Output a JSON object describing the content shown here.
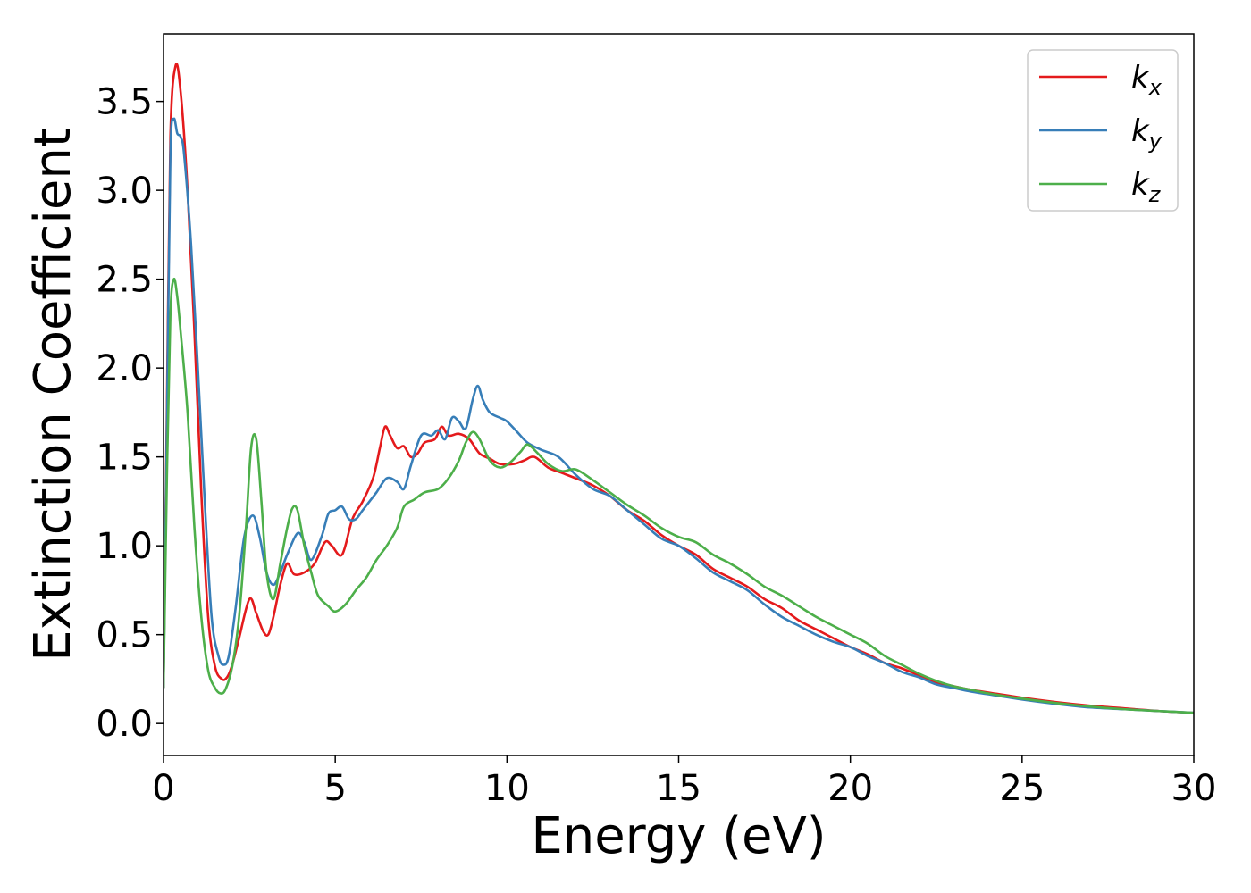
{
  "chart_data": {
    "type": "line",
    "xlabel": "Energy (eV)",
    "ylabel": "Extinction Coefficient",
    "xlim": [
      0,
      30
    ],
    "ylim": [
      -0.18,
      3.88
    ],
    "xticks": [
      0,
      5,
      10,
      15,
      20,
      25,
      30
    ],
    "yticks": [
      0.0,
      0.5,
      1.0,
      1.5,
      2.0,
      2.5,
      3.0,
      3.5
    ],
    "xtick_labels": [
      "0",
      "5",
      "10",
      "15",
      "20",
      "25",
      "30"
    ],
    "ytick_labels": [
      "0.0",
      "0.5",
      "1.0",
      "1.5",
      "2.0",
      "2.5",
      "3.0",
      "3.5"
    ],
    "grid": false,
    "legend_position": "top-right",
    "series": [
      {
        "name": "k_x",
        "label_main": "k",
        "label_sub": "x",
        "color": "#e41a1c",
        "x": [
          0,
          0.1,
          0.2,
          0.35,
          0.5,
          0.7,
          0.9,
          1.1,
          1.3,
          1.5,
          1.7,
          1.85,
          2.0,
          2.2,
          2.5,
          2.7,
          2.9,
          3.05,
          3.2,
          3.4,
          3.6,
          3.8,
          4.1,
          4.4,
          4.7,
          4.9,
          5.2,
          5.5,
          5.8,
          6.1,
          6.3,
          6.45,
          6.6,
          6.8,
          7.0,
          7.2,
          7.4,
          7.6,
          7.9,
          8.1,
          8.3,
          8.6,
          8.9,
          9.2,
          9.5,
          9.8,
          10.2,
          10.5,
          10.8,
          11.2,
          11.6,
          12.0,
          12.5,
          13.0,
          13.5,
          14.0,
          14.5,
          15.0,
          15.5,
          16.0,
          16.5,
          17.0,
          17.5,
          18.0,
          18.5,
          19.0,
          19.5,
          20.0,
          20.5,
          21.0,
          21.5,
          22.0,
          22.5,
          23.0,
          23.5,
          24.0,
          25.0,
          26.0,
          27.0,
          28.0,
          29.0,
          30.0
        ],
        "y": [
          0.2,
          1.8,
          3.3,
          3.7,
          3.55,
          3.0,
          2.2,
          1.3,
          0.6,
          0.32,
          0.25,
          0.26,
          0.33,
          0.48,
          0.7,
          0.62,
          0.52,
          0.5,
          0.6,
          0.78,
          0.9,
          0.84,
          0.85,
          0.9,
          1.02,
          1.0,
          0.95,
          1.15,
          1.25,
          1.38,
          1.55,
          1.67,
          1.62,
          1.55,
          1.56,
          1.5,
          1.52,
          1.58,
          1.6,
          1.67,
          1.62,
          1.63,
          1.6,
          1.52,
          1.49,
          1.46,
          1.46,
          1.48,
          1.5,
          1.44,
          1.41,
          1.38,
          1.34,
          1.28,
          1.2,
          1.14,
          1.06,
          1.0,
          0.95,
          0.87,
          0.82,
          0.77,
          0.7,
          0.65,
          0.58,
          0.53,
          0.48,
          0.43,
          0.39,
          0.34,
          0.31,
          0.27,
          0.23,
          0.21,
          0.19,
          0.175,
          0.145,
          0.12,
          0.1,
          0.085,
          0.07,
          0.06
        ]
      },
      {
        "name": "k_y",
        "label_main": "k",
        "label_sub": "y",
        "color": "#377eb8",
        "x": [
          0,
          0.1,
          0.2,
          0.3,
          0.4,
          0.5,
          0.6,
          0.8,
          1.0,
          1.2,
          1.4,
          1.6,
          1.75,
          1.9,
          2.1,
          2.35,
          2.6,
          2.8,
          3.0,
          3.2,
          3.4,
          3.6,
          3.9,
          4.1,
          4.3,
          4.6,
          4.8,
          5.0,
          5.2,
          5.4,
          5.6,
          5.8,
          6.0,
          6.2,
          6.5,
          6.8,
          7.0,
          7.2,
          7.5,
          7.8,
          8.0,
          8.2,
          8.4,
          8.6,
          8.8,
          9.0,
          9.15,
          9.3,
          9.5,
          9.8,
          10.0,
          10.3,
          10.6,
          11.0,
          11.5,
          12.0,
          12.5,
          13.0,
          13.5,
          14.0,
          14.5,
          15.0,
          15.5,
          16.0,
          16.5,
          17.0,
          17.5,
          18.0,
          18.5,
          19.0,
          19.5,
          20.0,
          20.5,
          21.0,
          21.5,
          22.0,
          22.5,
          23.0,
          23.5,
          24.0,
          25.0,
          26.0,
          27.0,
          28.0,
          29.0,
          30.0
        ],
        "y": [
          0.2,
          1.7,
          3.2,
          3.4,
          3.32,
          3.3,
          3.2,
          2.7,
          2.0,
          1.25,
          0.6,
          0.38,
          0.33,
          0.38,
          0.65,
          1.05,
          1.17,
          1.05,
          0.85,
          0.78,
          0.85,
          0.95,
          1.07,
          1.02,
          0.92,
          1.05,
          1.18,
          1.2,
          1.22,
          1.15,
          1.15,
          1.2,
          1.25,
          1.3,
          1.38,
          1.36,
          1.32,
          1.45,
          1.62,
          1.62,
          1.65,
          1.6,
          1.72,
          1.7,
          1.66,
          1.82,
          1.9,
          1.82,
          1.75,
          1.72,
          1.7,
          1.64,
          1.58,
          1.54,
          1.5,
          1.4,
          1.32,
          1.28,
          1.2,
          1.12,
          1.04,
          1.0,
          0.93,
          0.85,
          0.8,
          0.75,
          0.67,
          0.6,
          0.55,
          0.5,
          0.46,
          0.43,
          0.38,
          0.34,
          0.29,
          0.26,
          0.22,
          0.2,
          0.18,
          0.165,
          0.135,
          0.11,
          0.09,
          0.08,
          0.07,
          0.06
        ]
      },
      {
        "name": "k_z",
        "label_main": "k",
        "label_sub": "z",
        "color": "#4daf4a",
        "x": [
          0,
          0.1,
          0.2,
          0.3,
          0.4,
          0.5,
          0.7,
          0.9,
          1.1,
          1.3,
          1.5,
          1.65,
          1.8,
          2.0,
          2.2,
          2.4,
          2.55,
          2.7,
          2.85,
          3.0,
          3.2,
          3.4,
          3.6,
          3.75,
          3.9,
          4.1,
          4.3,
          4.5,
          4.8,
          5.0,
          5.3,
          5.6,
          5.9,
          6.2,
          6.5,
          6.8,
          7.0,
          7.3,
          7.6,
          8.0,
          8.3,
          8.6,
          8.8,
          9.0,
          9.2,
          9.5,
          9.8,
          10.1,
          10.4,
          10.6,
          10.9,
          11.2,
          11.6,
          12.0,
          12.5,
          13.0,
          13.5,
          14.0,
          14.5,
          15.0,
          15.5,
          16.0,
          16.5,
          17.0,
          17.5,
          18.0,
          18.5,
          19.0,
          19.5,
          20.0,
          20.5,
          21.0,
          21.5,
          22.0,
          22.5,
          23.0,
          23.5,
          24.0,
          25.0,
          26.0,
          27.0,
          28.0,
          29.0,
          30.0
        ],
        "y": [
          0.2,
          1.4,
          2.3,
          2.5,
          2.4,
          2.2,
          1.75,
          1.1,
          0.6,
          0.3,
          0.2,
          0.17,
          0.19,
          0.32,
          0.6,
          1.1,
          1.55,
          1.6,
          1.25,
          0.85,
          0.7,
          0.9,
          1.1,
          1.21,
          1.2,
          1.0,
          0.85,
          0.72,
          0.66,
          0.63,
          0.67,
          0.75,
          0.82,
          0.92,
          1.0,
          1.1,
          1.22,
          1.26,
          1.3,
          1.32,
          1.38,
          1.48,
          1.58,
          1.64,
          1.6,
          1.48,
          1.44,
          1.47,
          1.53,
          1.57,
          1.52,
          1.46,
          1.42,
          1.43,
          1.37,
          1.3,
          1.23,
          1.17,
          1.1,
          1.05,
          1.02,
          0.95,
          0.9,
          0.84,
          0.77,
          0.72,
          0.66,
          0.6,
          0.55,
          0.5,
          0.45,
          0.38,
          0.33,
          0.28,
          0.24,
          0.21,
          0.19,
          0.17,
          0.14,
          0.115,
          0.095,
          0.08,
          0.07,
          0.06
        ]
      }
    ]
  }
}
